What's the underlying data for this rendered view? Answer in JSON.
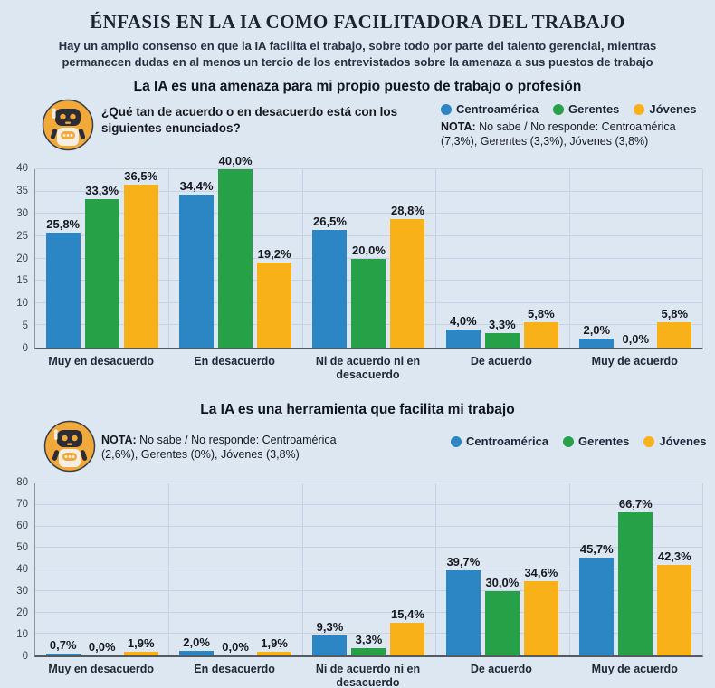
{
  "page": {
    "title": "ÉNFASIS EN LA IA COMO FACILITADORA DEL TRABAJO",
    "subtitle": "Hay un amplio consenso en que la IA facilita el trabajo, sobre todo por parte del talento gerencial, mientras permanecen dudas en al menos un tercio de los entrevistados sobre la amenaza a sus puestos de trabajo",
    "background_color": "#dde7f2"
  },
  "icons": {
    "robot_mascot": "robot-icon"
  },
  "colors": {
    "centroamerica": "#2d86c4",
    "gerentes": "#26a147",
    "jovenes": "#f8b118",
    "grid": "#c6d3e6",
    "heading": "#1b2430"
  },
  "chart_data": [
    {
      "type": "bar",
      "title": "La IA es una amenaza para mi propio puesto de trabajo o profesión",
      "question": "¿Qué tan de acuerdo o en desacuerdo está con los siguientes enunciados?",
      "note_label": "NOTA:",
      "note_text": "No sabe / No responde: Centroamérica (7,3%), Gerentes (3,3%), Jóvenes (3,8%)",
      "legend_position": "top-right",
      "grid": true,
      "ylim": [
        0,
        40
      ],
      "yticks": [
        0,
        5,
        10,
        15,
        20,
        25,
        30,
        35,
        40
      ],
      "categories": [
        "Muy en desacuerdo",
        "En desacuerdo",
        "Ni de acuerdo ni en desacuerdo",
        "De acuerdo",
        "Muy de acuerdo"
      ],
      "series": [
        {
          "name": "Centroamérica",
          "color": "#2d86c4",
          "values": [
            25.8,
            34.4,
            26.5,
            4.0,
            2.0
          ],
          "labels": [
            "25,8%",
            "34,4%",
            "26,5%",
            "4,0%",
            "2,0%"
          ]
        },
        {
          "name": "Gerentes",
          "color": "#26a147",
          "values": [
            33.3,
            40.0,
            20.0,
            3.3,
            0.0
          ],
          "labels": [
            "33,3%",
            "40,0%",
            "20,0%",
            "3,3%",
            "0,0%"
          ]
        },
        {
          "name": "Jóvenes",
          "color": "#f8b118",
          "values": [
            36.5,
            19.2,
            28.8,
            5.8,
            5.8
          ],
          "labels": [
            "36,5%",
            "19,2%",
            "28,8%",
            "5,8%",
            "5,8%"
          ]
        }
      ]
    },
    {
      "type": "bar",
      "title": "La IA es una herramienta que facilita mi trabajo",
      "note_label": "NOTA:",
      "note_text": "No sabe / No responde: Centroamérica (2,6%), Gerentes (0%), Jóvenes (3,8%)",
      "legend_position": "right",
      "grid": true,
      "ylim": [
        0,
        80
      ],
      "yticks": [
        0,
        10,
        20,
        30,
        40,
        50,
        60,
        70,
        80
      ],
      "categories": [
        "Muy en desacuerdo",
        "En desacuerdo",
        "Ni de acuerdo ni en desacuerdo",
        "De acuerdo",
        "Muy de acuerdo"
      ],
      "series": [
        {
          "name": "Centroamérica",
          "color": "#2d86c4",
          "values": [
            0.7,
            2.0,
            9.3,
            39.7,
            45.7
          ],
          "labels": [
            "0,7%",
            "2,0%",
            "9,3%",
            "39,7%",
            "45,7%"
          ]
        },
        {
          "name": "Gerentes",
          "color": "#26a147",
          "values": [
            0.0,
            0.0,
            3.3,
            30.0,
            66.7
          ],
          "labels": [
            "0,0%",
            "0,0%",
            "3,3%",
            "30,0%",
            "66,7%"
          ]
        },
        {
          "name": "Jóvenes",
          "color": "#f8b118",
          "values": [
            1.9,
            1.9,
            15.4,
            34.6,
            42.3
          ],
          "labels": [
            "1,9%",
            "1,9%",
            "15,4%",
            "34,6%",
            "42,3%"
          ]
        }
      ]
    }
  ]
}
